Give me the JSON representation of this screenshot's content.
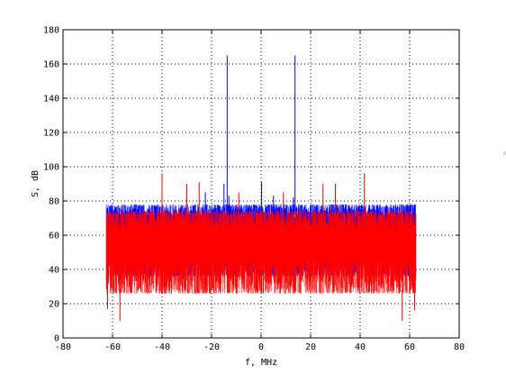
{
  "chart_data": {
    "type": "line",
    "xlabel": "f, MHz",
    "ylabel": "S, dB",
    "xlim": [
      -80,
      80
    ],
    "ylim": [
      0,
      180
    ],
    "x_ticks": [
      -80,
      -60,
      -40,
      -20,
      0,
      20,
      40,
      60,
      80
    ],
    "y_ticks": [
      0,
      20,
      40,
      60,
      80,
      100,
      120,
      140,
      160,
      180
    ],
    "grid": true,
    "series": [
      {
        "color": "#0000ff",
        "x_range": [
          -62.5,
          62.5
        ],
        "noise_band": [
          30,
          78
        ],
        "peaks": [
          {
            "x": -13.7,
            "y": 165
          },
          {
            "x": 13.7,
            "y": 165
          },
          {
            "x": -15.0,
            "y": 90
          },
          {
            "x": -22.5,
            "y": 85
          },
          {
            "x": -13.0,
            "y": 83
          },
          {
            "x": 0.2,
            "y": 91
          },
          {
            "x": 5.0,
            "y": 83
          },
          {
            "x": 13.0,
            "y": 82
          }
        ]
      },
      {
        "color": "#ff0000",
        "x_range": [
          -62.5,
          62.5
        ],
        "noise_band": [
          20,
          74
        ],
        "peaks": [
          {
            "x": -40.0,
            "y": 96
          },
          {
            "x": -30.0,
            "y": 90
          },
          {
            "x": -25.0,
            "y": 91
          },
          {
            "x": -9.0,
            "y": 85
          },
          {
            "x": 9.0,
            "y": 85
          },
          {
            "x": 25.0,
            "y": 90
          },
          {
            "x": 30.0,
            "y": 90
          },
          {
            "x": 41.7,
            "y": 96
          },
          {
            "x": -57.0,
            "y": 10
          },
          {
            "x": -62.0,
            "y": 17
          },
          {
            "x": 57.0,
            "y": 10
          },
          {
            "x": 62.0,
            "y": 16
          }
        ]
      }
    ]
  }
}
